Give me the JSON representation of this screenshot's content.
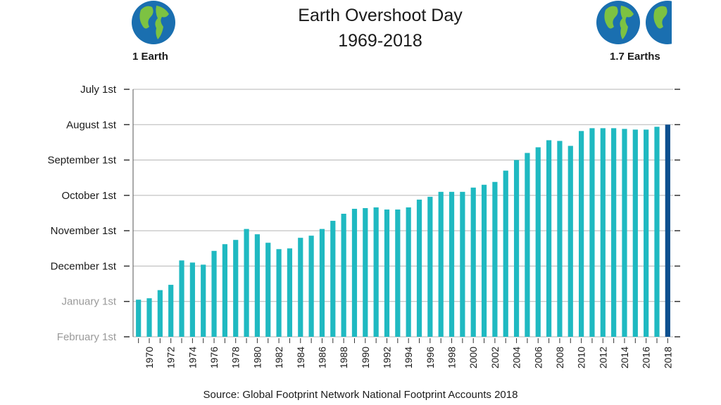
{
  "title_line1": "Earth Overshoot Day",
  "title_line2": "1969-2018",
  "left_label": "1 Earth",
  "right_label": "1.7 Earths",
  "source": "Source: Global Footprint Network National Footprint Accounts 2018",
  "icons": [
    "earth-globe-icon"
  ],
  "colors": {
    "bar": "#1fb9c1",
    "bar_highlight": "#0d4f8f",
    "grid": "#b5b5b5",
    "faded_label": "#9a9a9a"
  },
  "chart_data": {
    "type": "bar",
    "title": "Earth Overshoot Day",
    "subtitle": "1969-2018",
    "xlabel": "",
    "ylabel": "",
    "y_axis_labels": [
      "July 1st",
      "August 1st",
      "September 1st",
      "October 1st",
      "November 1st",
      "December 1st",
      "January 1st",
      "February 1st"
    ],
    "y_unit_note": "values are month offsets before February 1st (0 = February 1st, 7 = July 1st)",
    "ylim": [
      0,
      7
    ],
    "x_tick_labels": [
      "1970",
      "1972",
      "1974",
      "1976",
      "1978",
      "1980",
      "1982",
      "1984",
      "1986",
      "1988",
      "1990",
      "1992",
      "1994",
      "1996",
      "1998",
      "2000",
      "2002",
      "2004",
      "2006",
      "2008",
      "2010",
      "2012",
      "2014",
      "2016",
      "2018"
    ],
    "categories": [
      "1969",
      "1970",
      "1971",
      "1972",
      "1973",
      "1974",
      "1975",
      "1976",
      "1977",
      "1978",
      "1979",
      "1980",
      "1981",
      "1982",
      "1983",
      "1984",
      "1985",
      "1986",
      "1987",
      "1988",
      "1989",
      "1990",
      "1991",
      "1992",
      "1993",
      "1994",
      "1995",
      "1996",
      "1997",
      "1998",
      "1999",
      "2000",
      "2001",
      "2002",
      "2003",
      "2004",
      "2005",
      "2006",
      "2007",
      "2008",
      "2009",
      "2010",
      "2011",
      "2012",
      "2013",
      "2014",
      "2015",
      "2016",
      "2017",
      "2018"
    ],
    "values": [
      1.05,
      1.09,
      1.32,
      1.47,
      2.16,
      2.1,
      2.04,
      2.43,
      2.62,
      2.74,
      3.05,
      2.9,
      2.66,
      2.48,
      2.5,
      2.8,
      2.86,
      3.05,
      3.28,
      3.48,
      3.62,
      3.64,
      3.66,
      3.6,
      3.6,
      3.66,
      3.88,
      3.96,
      4.1,
      4.1,
      4.1,
      4.22,
      4.3,
      4.38,
      4.7,
      5.0,
      5.2,
      5.36,
      5.56,
      5.54,
      5.4,
      5.82,
      5.9,
      5.9,
      5.9,
      5.88,
      5.86,
      5.86,
      5.94,
      6.0
    ],
    "highlight": "2018",
    "grid": true,
    "legend": "none"
  }
}
